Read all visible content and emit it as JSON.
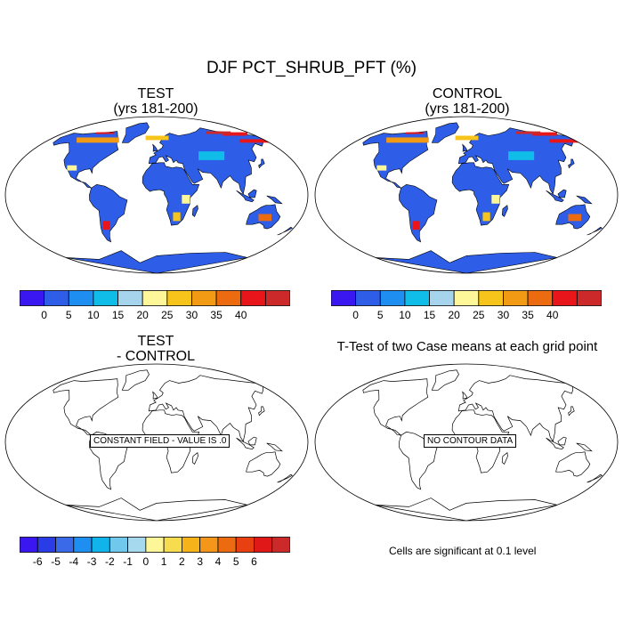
{
  "main_title": "DJF PCT_SHRUB_PFT (%)",
  "panels": {
    "test": {
      "title_line1": "TEST",
      "title_line2": "(yrs 181-200)"
    },
    "control": {
      "title_line1": "CONTROL",
      "title_line2": "(yrs 181-200)"
    },
    "diff": {
      "title_line1": "TEST",
      "title_line2": "- CONTROL",
      "box_text": "CONSTANT FIELD - VALUE IS .0"
    },
    "ttest": {
      "title": "T-Test of two Case means at each grid point",
      "box_text": "NO CONTOUR DATA",
      "note": "Cells are significant at 0.1 level"
    }
  },
  "colorbar_top": {
    "colors": [
      "#3a16f0",
      "#2e5ee8",
      "#1e8ef0",
      "#10bce8",
      "#a6d4ec",
      "#fdf79a",
      "#f6c41a",
      "#f39a14",
      "#ec6a10",
      "#e8161a",
      "#cc2a2a"
    ],
    "labels": [
      "0",
      "5",
      "10",
      "15",
      "20",
      "25",
      "30",
      "35",
      "40"
    ]
  },
  "colorbar_diff": {
    "colors": [
      "#3a16f0",
      "#2a3ce6",
      "#3a6ae8",
      "#1e8ef0",
      "#10b4ea",
      "#70c8ec",
      "#a6d8ee",
      "#fdf79a",
      "#f8dc50",
      "#f6b41a",
      "#f3961a",
      "#ec6a10",
      "#e84010",
      "#e01818",
      "#cc2a2a"
    ],
    "labels": [
      "-6",
      "-5",
      "-4",
      "-3",
      "-2",
      "-1",
      "0",
      "1",
      "2",
      "3",
      "4",
      "5",
      "6"
    ]
  },
  "colors": {
    "ocean": "#ffffff",
    "land_fill": "#2e5ee8",
    "coast": "#000000"
  }
}
